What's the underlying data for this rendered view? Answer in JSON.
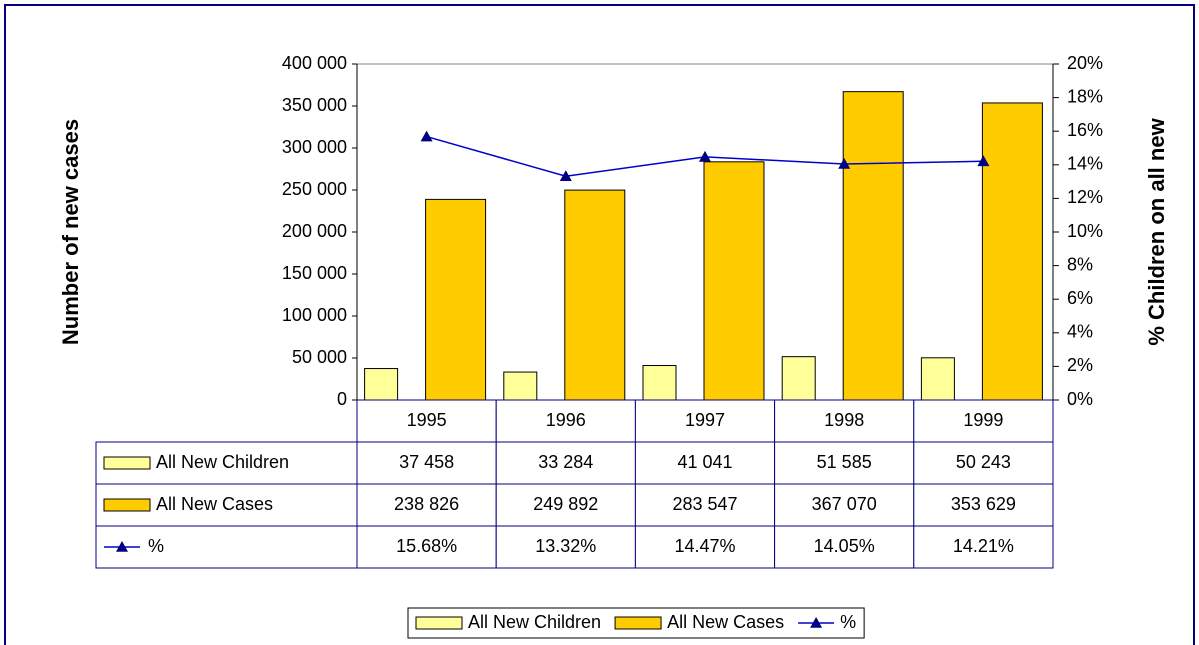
{
  "chart_data": {
    "type": "bar",
    "categories": [
      "1995",
      "1996",
      "1997",
      "1998",
      "1999"
    ],
    "series": [
      {
        "name": "All New Children",
        "color": "#FFFF99",
        "values": [
          37458,
          33284,
          41041,
          51585,
          50243
        ],
        "value_labels": [
          "37 458",
          "33 284",
          "41 041",
          "51 585",
          "50 243"
        ]
      },
      {
        "name": "All New Cases",
        "color": "#FFCC00",
        "values": [
          238826,
          249892,
          283547,
          367070,
          353629
        ],
        "value_labels": [
          "238 826",
          "249 892",
          "283 547",
          "367 070",
          "353 629"
        ]
      },
      {
        "name": "%",
        "color": "#0000CC",
        "type": "line",
        "axis": "y2",
        "values": [
          15.68,
          13.32,
          14.47,
          14.05,
          14.21
        ],
        "value_labels": [
          "15.68%",
          "13.32%",
          "14.47%",
          "14.05%",
          "14.21%"
        ]
      }
    ],
    "ylabel": "Number of new cases",
    "y2label": "% Children on all new",
    "ylim": [
      0,
      400000
    ],
    "yticks": [
      0,
      {
        "value": 50000,
        "label": "50 000"
      },
      {
        "value": 100000,
        "label": "100 000"
      },
      {
        "value": 150000,
        "label": "150 000"
      },
      {
        "value": 200000,
        "label": "200 000"
      },
      {
        "value": 250000,
        "label": "250 000"
      },
      {
        "value": 300000,
        "label": "300 000"
      },
      {
        "value": 350000,
        "label": "350 000"
      },
      {
        "value": 400000,
        "label": "400 000"
      }
    ],
    "y2lim": [
      0,
      20
    ],
    "y2ticks": [
      {
        "value": 0,
        "label": "0%"
      },
      {
        "value": 2,
        "label": "2%"
      },
      {
        "value": 4,
        "label": "4%"
      },
      {
        "value": 6,
        "label": "6%"
      },
      {
        "value": 8,
        "label": "8%"
      },
      {
        "value": 10,
        "label": "10%"
      },
      {
        "value": 12,
        "label": "12%"
      },
      {
        "value": 14,
        "label": "14%"
      },
      {
        "value": 16,
        "label": "16%"
      },
      {
        "value": 18,
        "label": "18%"
      },
      {
        "value": 20,
        "label": "20%"
      }
    ],
    "grid": false,
    "legend": "bottom",
    "data_table": true
  }
}
